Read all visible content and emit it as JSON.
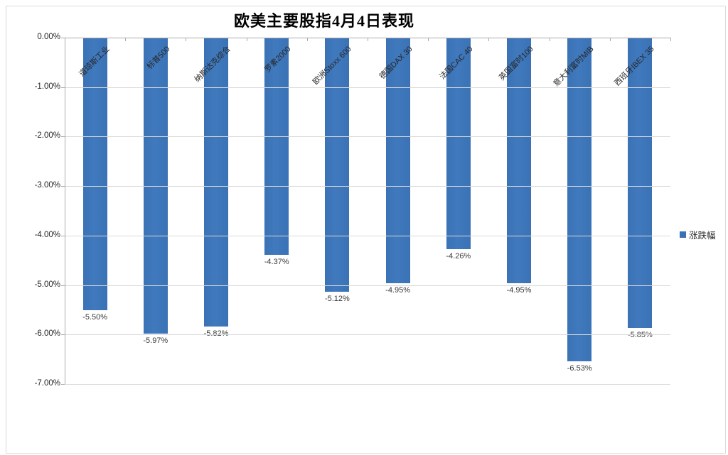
{
  "chart_data": {
    "type": "bar",
    "title": "欧美主要股指4月4日表现",
    "categories": [
      "道琼斯工业",
      "标普500",
      "纳斯达克综合",
      "罗素2000",
      "欧洲Stoxx 600",
      "德国DAX 30",
      "法国CAC 40",
      "英国富时100",
      "意大利富时MIB",
      "西班牙IBEX 35"
    ],
    "series": [
      {
        "name": "涨跌幅",
        "values": [
          -5.5,
          -5.97,
          -5.82,
          -4.37,
          -5.12,
          -4.95,
          -4.26,
          -4.95,
          -6.53,
          -5.85
        ]
      }
    ],
    "value_labels": [
      "-5.50%",
      "-5.97%",
      "-5.82%",
      "-4.37%",
      "-5.12%",
      "-4.95%",
      "-4.26%",
      "-4.95%",
      "-6.53%",
      "-5.85%"
    ],
    "y_ticks": [
      "0.00%",
      "-1.00%",
      "-2.00%",
      "-3.00%",
      "-4.00%",
      "-5.00%",
      "-6.00%",
      "-7.00%"
    ],
    "ylim": [
      -7,
      0
    ],
    "y_tick_step": 1,
    "xlabel": "",
    "ylabel": "",
    "grid": true,
    "legend_position": "right",
    "colors": {
      "bar": "#3B72B6",
      "gridline": "#D9D9D9",
      "axis": "#ABABAB",
      "chart_border": "#D9D9D9",
      "label_text": "#262626"
    }
  }
}
